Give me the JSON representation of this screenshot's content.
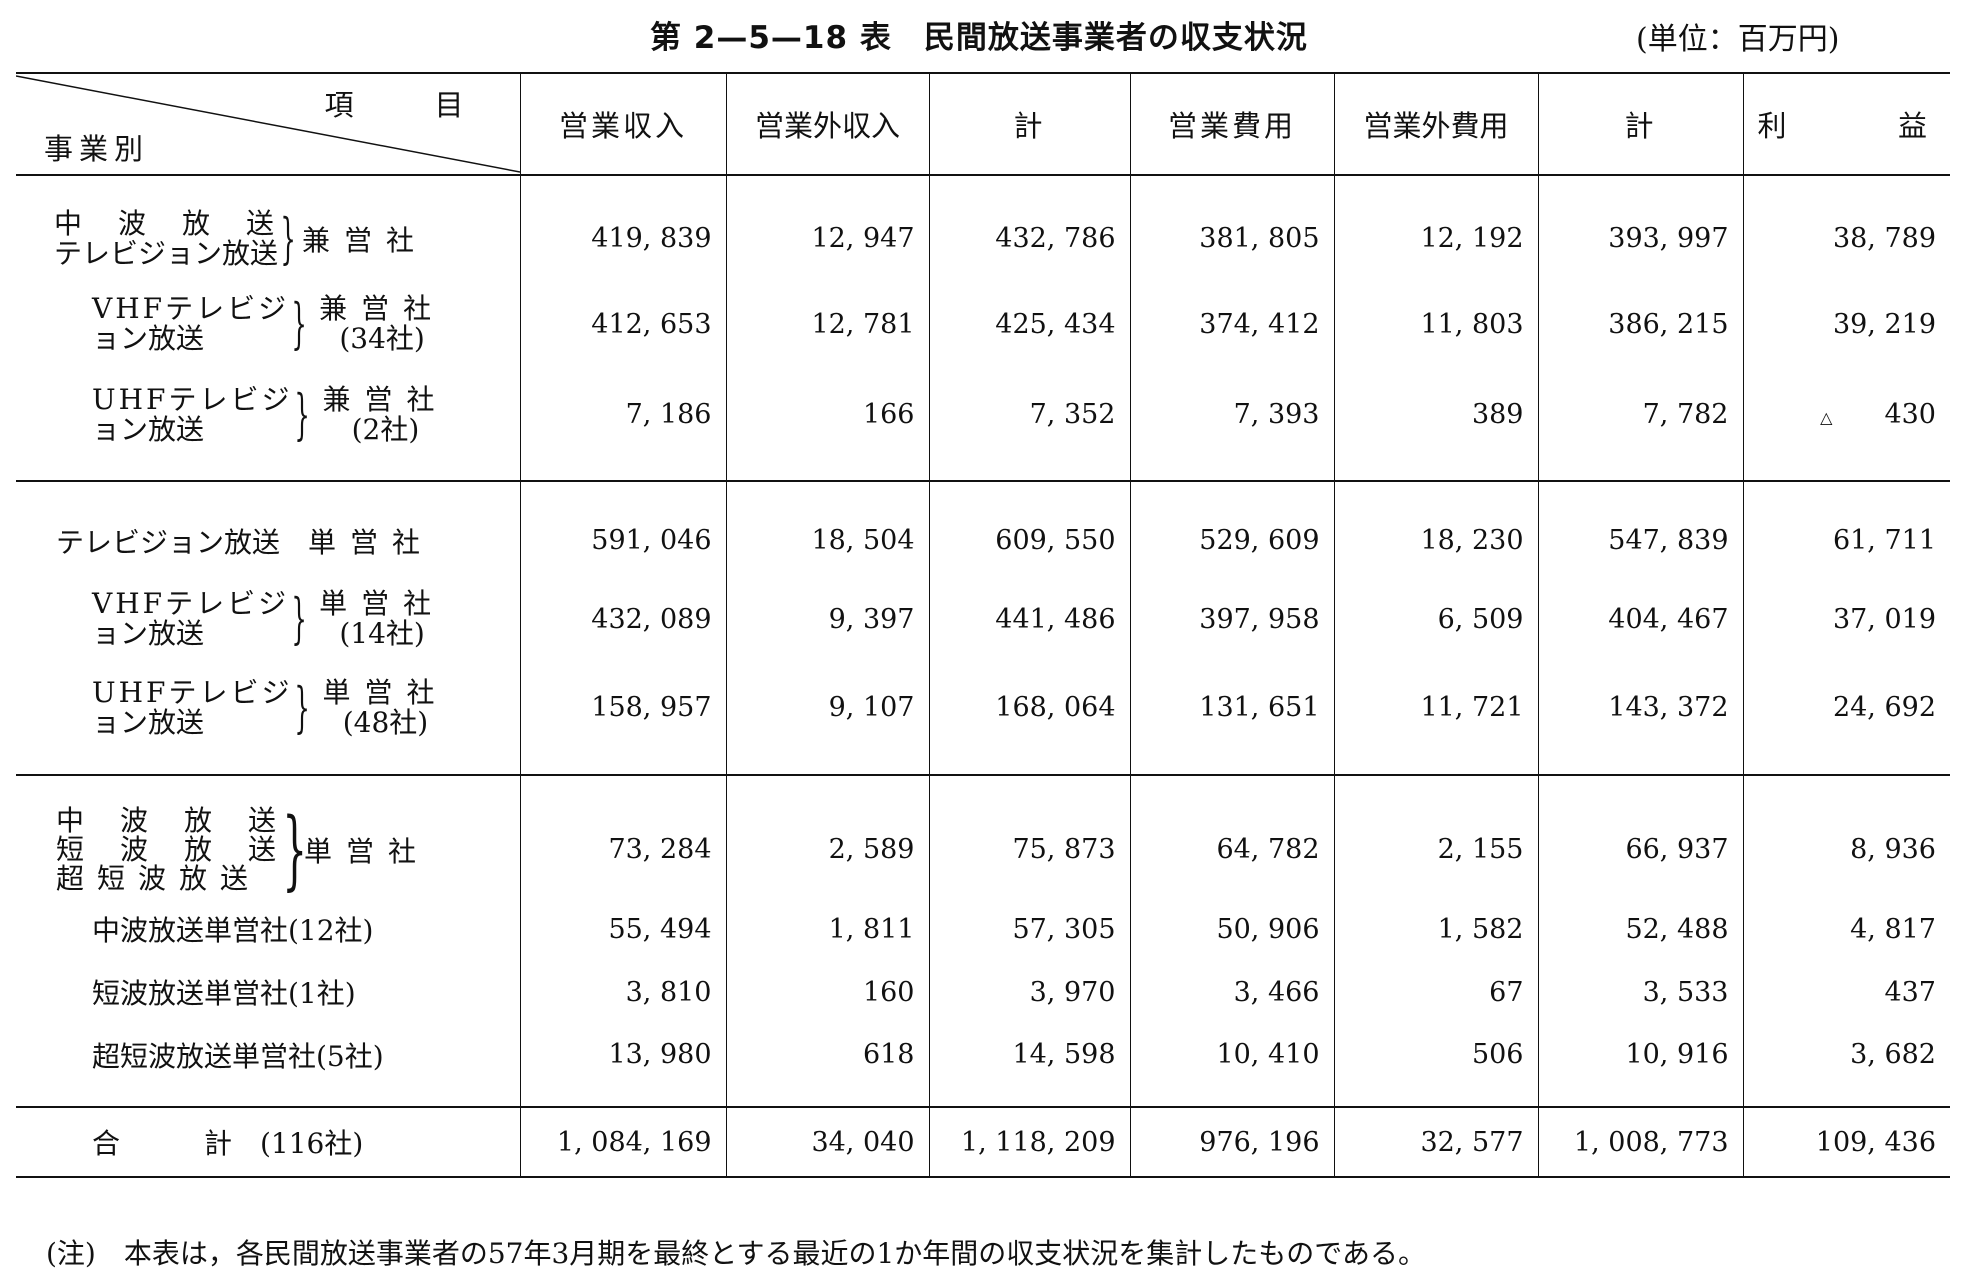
{
  "title": "第 2—5—18 表　民間放送事業者の収支状況",
  "unit": "(単位：百万円)",
  "header": {
    "item_label": "項　目",
    "category_label": "事業別",
    "columns": [
      "営業収入",
      "営業外収入",
      "計",
      "営業費用",
      "営業外費用",
      "計"
    ],
    "profit_left": "利",
    "profit_right": "益"
  },
  "rows": [
    {
      "label_lines": [
        "中　波　放　送",
        "テレビジョン放送"
      ],
      "type_lines": [
        "兼営社"
      ],
      "values": [
        "419, 839",
        "12, 947",
        "432, 786",
        "381, 805",
        "12, 192",
        "393, 997",
        "38, 789"
      ]
    },
    {
      "label_lines": [
        "VHFテレビジ",
        "ョン放送"
      ],
      "type_lines": [
        "兼営社",
        "(34社)"
      ],
      "values": [
        "412, 653",
        "12, 781",
        "425, 434",
        "374, 412",
        "11, 803",
        "386, 215",
        "39, 219"
      ]
    },
    {
      "label_lines": [
        "UHFテレビジ",
        "ョン放送"
      ],
      "type_lines": [
        "兼営社",
        "(2社)"
      ],
      "values": [
        "7, 186",
        "166",
        "7, 352",
        "7, 393",
        "389",
        "7, 782",
        "430"
      ],
      "profit_mark": "△"
    },
    {
      "label_lines": [
        "テレビジョン放送"
      ],
      "type_lines": [
        "単営社"
      ],
      "values": [
        "591, 046",
        "18, 504",
        "609, 550",
        "529, 609",
        "18, 230",
        "547, 839",
        "61, 711"
      ]
    },
    {
      "label_lines": [
        "VHFテレビジ",
        "ョン放送"
      ],
      "type_lines": [
        "単営社",
        "(14社)"
      ],
      "values": [
        "432, 089",
        "9, 397",
        "441, 486",
        "397, 958",
        "6, 509",
        "404, 467",
        "37, 019"
      ]
    },
    {
      "label_lines": [
        "UHFテレビジ",
        "ョン放送"
      ],
      "type_lines": [
        "単営社",
        "(48社)"
      ],
      "values": [
        "158, 957",
        "9, 107",
        "168, 064",
        "131, 651",
        "11, 721",
        "143, 372",
        "24, 692"
      ]
    },
    {
      "label_lines": [
        "中　波　放　送",
        "短　波　放　送",
        "超短波放送"
      ],
      "type_lines": [
        "単営社"
      ],
      "values": [
        "73, 284",
        "2, 589",
        "75, 873",
        "64, 782",
        "2, 155",
        "66, 937",
        "8, 936"
      ]
    },
    {
      "label_lines": [
        "中波放送単営社(12社)"
      ],
      "values": [
        "55, 494",
        "1, 811",
        "57, 305",
        "50, 906",
        "1, 582",
        "52, 488",
        "4, 817"
      ]
    },
    {
      "label_lines": [
        "短波放送単営社(1社)"
      ],
      "values": [
        "3, 810",
        "160",
        "3, 970",
        "3, 466",
        "67",
        "3, 533",
        "437"
      ]
    },
    {
      "label_lines": [
        "超短波放送単営社(5社)"
      ],
      "values": [
        "13, 980",
        "618",
        "14, 598",
        "10, 410",
        "506",
        "10, 916",
        "3, 682"
      ]
    },
    {
      "label_lines": [
        "合　　　計　(116社)"
      ],
      "values": [
        "1, 084, 169",
        "34, 040",
        "1, 118, 209",
        "976, 196",
        "32, 577",
        "1, 008, 773",
        "109, 436"
      ]
    }
  ],
  "note": "(注)　本表は，各民間放送事業者の57年3月期を最終とする最近の1か年間の収支状況を集計したものである。"
}
